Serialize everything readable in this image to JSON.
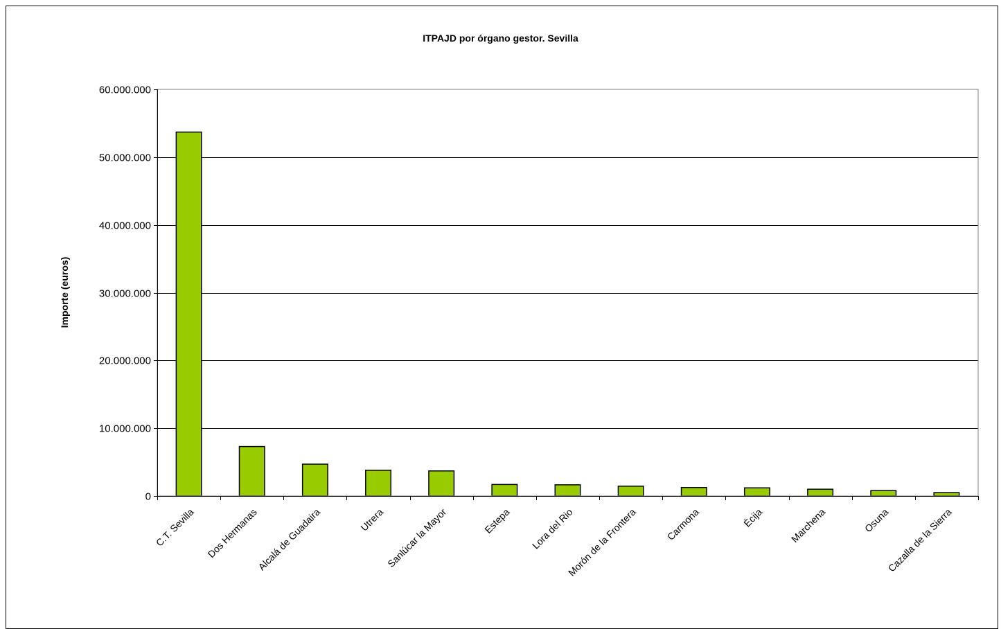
{
  "chart_data": {
    "type": "bar",
    "title": "ITPAJD por órgano gestor. Sevilla",
    "xlabel": "",
    "ylabel": "Importe (euros)",
    "ylim": [
      0,
      60000000
    ],
    "yticks": [
      0,
      10000000,
      20000000,
      30000000,
      40000000,
      50000000,
      60000000
    ],
    "ytick_labels": [
      "0",
      "10.000.000",
      "20.000.000",
      "30.000.000",
      "40.000.000",
      "50.000.000",
      "60.000.000"
    ],
    "grid": true,
    "legend": "none",
    "bar_color": "#99cc00",
    "categories": [
      "C.T. Sevilla",
      "Dos Hermanas",
      "Alcalá de Guadaira",
      "Utrera",
      "Sanlúcar la Mayor",
      "Estepa",
      "Lora del Rio",
      "Morón de la Frontera",
      "Carmona",
      "Écija",
      "Marchena",
      "Osuna",
      "Cazalla de la Sierra"
    ],
    "values": [
      53700000,
      7300000,
      4700000,
      3800000,
      3700000,
      1700000,
      1650000,
      1450000,
      1250000,
      1200000,
      1000000,
      800000,
      500000
    ]
  }
}
